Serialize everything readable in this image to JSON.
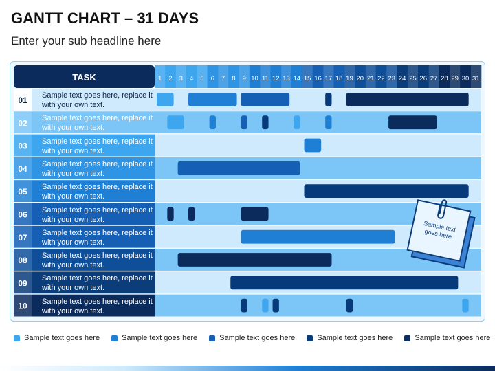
{
  "title": "GANTT CHART – 31 DAYS",
  "subtitle": "Enter your sub headline here",
  "colors": {
    "navy": "#0b2b5c",
    "deep": "#073a7a",
    "blue": "#1560b5",
    "mid": "#1f7fd4",
    "bright": "#3ea6ef",
    "light": "#7cc6f7",
    "pale": "#cfeafc"
  },
  "gantt": {
    "header_label": "TASK",
    "days": [
      "1",
      "2",
      "3",
      "4",
      "5",
      "6",
      "7",
      "8",
      "9",
      "10",
      "11",
      "12",
      "13",
      "14",
      "15",
      "16",
      "17",
      "18",
      "19",
      "20",
      "21",
      "22",
      "23",
      "24",
      "25",
      "26",
      "27",
      "28",
      "29",
      "30",
      "31"
    ],
    "tasks": [
      {
        "num": "01",
        "text": "Sample text goes here, replace it with your own text.",
        "bars": [
          [
            1,
            3,
            "bright"
          ],
          [
            4,
            9,
            "mid"
          ],
          [
            9,
            14,
            "blue"
          ],
          [
            17,
            18,
            "deep"
          ],
          [
            19,
            31,
            "navy"
          ]
        ]
      },
      {
        "num": "02",
        "text": "Sample text goes here, replace it with your own text.",
        "bars": [
          [
            2,
            4,
            "bright"
          ],
          [
            6,
            7,
            "mid"
          ],
          [
            9,
            10,
            "blue"
          ],
          [
            11,
            12,
            "deep"
          ],
          [
            14,
            15,
            "bright"
          ],
          [
            17,
            18,
            "mid"
          ],
          [
            23,
            28,
            "navy"
          ]
        ]
      },
      {
        "num": "03",
        "text": "Sample text goes here, replace it with your own text.",
        "bars": [
          [
            15,
            17,
            "mid"
          ]
        ]
      },
      {
        "num": "04",
        "text": "Sample text goes here, replace it with your own text.",
        "bars": [
          [
            3,
            15,
            "blue"
          ]
        ]
      },
      {
        "num": "05",
        "text": "Sample text goes here, replace it with your own text.",
        "bars": [
          [
            15,
            31,
            "deep"
          ]
        ]
      },
      {
        "num": "06",
        "text": "Sample text goes here, replace it with your own text.",
        "bars": [
          [
            2,
            3,
            "navy"
          ],
          [
            4,
            5,
            "navy"
          ],
          [
            9,
            12,
            "navy"
          ]
        ]
      },
      {
        "num": "07",
        "text": "Sample text goes here, replace it with your own text.",
        "bars": [
          [
            9,
            24,
            "mid"
          ]
        ]
      },
      {
        "num": "08",
        "text": "Sample text goes here, replace it with your own text.",
        "bars": [
          [
            3,
            18,
            "navy"
          ]
        ]
      },
      {
        "num": "09",
        "text": "Sample text goes here, replace it with your own text.",
        "bars": [
          [
            8,
            30,
            "deep"
          ]
        ]
      },
      {
        "num": "10",
        "text": "Sample text goes here, replace it with your own text.",
        "bars": [
          [
            9,
            10,
            "deep"
          ],
          [
            11,
            12,
            "bright"
          ],
          [
            12,
            13,
            "deep"
          ],
          [
            19,
            20,
            "deep"
          ],
          [
            30,
            31,
            "bright"
          ]
        ]
      }
    ]
  },
  "sticky_note": {
    "text": "Sample text goes here"
  },
  "legend": [
    {
      "label": "Sample text goes here",
      "color": "bright"
    },
    {
      "label": "Sample text goes here",
      "color": "mid"
    },
    {
      "label": "Sample text goes here",
      "color": "blue"
    },
    {
      "label": "Sample text goes here",
      "color": "deep"
    },
    {
      "label": "Sample text goes here",
      "color": "navy"
    }
  ]
}
